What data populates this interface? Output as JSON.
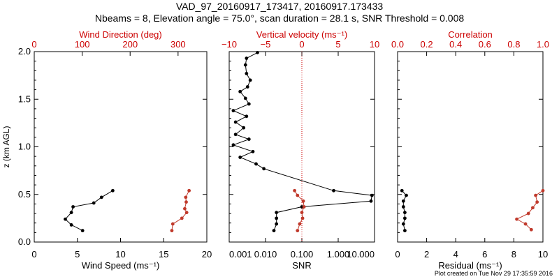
{
  "header": {
    "title_line1": "VAD_97_20160917_173417, 20160917.173433",
    "title_line2": "Nbeams = 8, Elevation angle = 75.0°, scan duration = 28.1 s, SNR Threshold = 0.008"
  },
  "footer": {
    "text": "Plot created on Tue Nov 29 17:35:59 2016"
  },
  "colors": {
    "axis": "#000000",
    "red": "#cc0000",
    "series_black": "#000000",
    "series_red": "#c0392b"
  },
  "chart_data": [
    {
      "type": "line",
      "panel": "wind",
      "xlabel": "Wind Speed (ms⁻¹)",
      "ylabel": "z (km AGL)",
      "xlim": [
        0,
        20
      ],
      "ylim": [
        0,
        2.0
      ],
      "x_ticks": [
        "0",
        "5",
        "10",
        "15",
        "20"
      ],
      "y_ticks": [
        "0.0",
        "0.5",
        "1.0",
        "1.5",
        "2.0"
      ],
      "top_axis": {
        "label": "Wind Direction (deg)",
        "lim": [
          0,
          360
        ],
        "ticks": [
          "0",
          "100",
          "200",
          "300"
        ],
        "tick_values": [
          0,
          100,
          200,
          300
        ],
        "color": "#cc0000"
      },
      "series": [
        {
          "axis": "bottom",
          "color": "#000000",
          "points": [
            [
              9.1,
              0.54
            ],
            [
              7.8,
              0.47
            ],
            [
              6.9,
              0.41
            ],
            [
              4.5,
              0.37
            ],
            [
              4.3,
              0.31
            ],
            [
              3.6,
              0.24
            ],
            [
              4.3,
              0.18
            ],
            [
              5.6,
              0.12
            ]
          ]
        },
        {
          "axis": "top",
          "color": "#c0392b",
          "points": [
            [
              323,
              0.54
            ],
            [
              316,
              0.47
            ],
            [
              317,
              0.42
            ],
            [
              314,
              0.35
            ],
            [
              318,
              0.31
            ],
            [
              308,
              0.25
            ],
            [
              289,
              0.19
            ],
            [
              287,
              0.12
            ]
          ]
        }
      ]
    },
    {
      "type": "line",
      "panel": "snr",
      "xlabel": "SNR",
      "xlim": [
        0.001,
        10
      ],
      "xscale": "log",
      "ylim": [
        0,
        2.0
      ],
      "x_ticks": [
        "0.001",
        "0.010",
        "0.100",
        "1.000",
        "10.000"
      ],
      "x_tick_values": [
        0.001,
        0.01,
        0.1,
        1,
        10
      ],
      "top_axis": {
        "label": "Vertical velocity (ms⁻¹)",
        "lim": [
          -10,
          10
        ],
        "ticks": [
          "−10",
          "−5",
          "0",
          "5",
          "10"
        ],
        "tick_values": [
          -10,
          -5,
          0,
          5,
          10
        ],
        "color": "#cc0000"
      },
      "threshold_line": {
        "axis": "top",
        "value": 0,
        "color": "#cc0000",
        "style": "dotted"
      },
      "series": [
        {
          "axis": "bottom",
          "color": "#000000",
          "points": [
            [
              0.006,
              1.99
            ],
            [
              0.003,
              1.93
            ],
            [
              0.0028,
              1.86
            ],
            [
              0.003,
              1.77
            ],
            [
              0.0038,
              1.7
            ],
            [
              0.0032,
              1.63
            ],
            [
              0.002,
              1.58
            ],
            [
              0.0028,
              1.51
            ],
            [
              0.0035,
              1.45
            ],
            [
              0.0013,
              1.38
            ],
            [
              0.003,
              1.32
            ],
            [
              0.0015,
              1.26
            ],
            [
              0.0025,
              1.2
            ],
            [
              0.0015,
              1.13
            ],
            [
              0.0035,
              1.08
            ],
            [
              0.0013,
              1.02
            ],
            [
              0.0045,
              0.95
            ],
            [
              0.002,
              0.89
            ],
            [
              0.0055,
              0.82
            ],
            [
              0.009,
              0.77
            ],
            [
              0.75,
              0.54
            ],
            [
              8.5,
              0.49
            ],
            [
              8.0,
              0.43
            ],
            [
              0.1,
              0.37
            ],
            [
              0.02,
              0.31
            ],
            [
              0.02,
              0.25
            ],
            [
              0.02,
              0.19
            ],
            [
              0.017,
              0.12
            ]
          ]
        },
        {
          "axis": "top",
          "color": "#c0392b",
          "points": [
            [
              -1.0,
              0.54
            ],
            [
              -0.6,
              0.49
            ],
            [
              0.2,
              0.43
            ],
            [
              0.3,
              0.37
            ],
            [
              0.0,
              0.31
            ],
            [
              0.1,
              0.25
            ],
            [
              -0.3,
              0.19
            ],
            [
              -0.6,
              0.12
            ]
          ]
        }
      ]
    },
    {
      "type": "line",
      "panel": "residual",
      "xlabel": "Residual (ms⁻¹)",
      "xlim": [
        0,
        10
      ],
      "ylim": [
        0,
        2.0
      ],
      "x_ticks": [
        "0",
        "2",
        "4",
        "6",
        "8",
        "10"
      ],
      "x_tick_values": [
        0,
        2,
        4,
        6,
        8,
        10
      ],
      "top_axis": {
        "label": "Correlation",
        "lim": [
          0,
          1
        ],
        "ticks": [
          "0.0",
          "0.2",
          "0.4",
          "0.6",
          "0.8",
          "1.0"
        ],
        "tick_values": [
          0,
          0.2,
          0.4,
          0.6,
          0.8,
          1.0
        ],
        "color": "#cc0000"
      },
      "series": [
        {
          "axis": "bottom",
          "color": "#000000",
          "points": [
            [
              0.3,
              0.54
            ],
            [
              0.6,
              0.49
            ],
            [
              0.4,
              0.43
            ],
            [
              0.4,
              0.37
            ],
            [
              0.5,
              0.31
            ],
            [
              0.5,
              0.25
            ],
            [
              0.4,
              0.19
            ],
            [
              0.5,
              0.12
            ]
          ]
        },
        {
          "axis": "top",
          "color": "#c0392b",
          "points": [
            [
              1.0,
              0.54
            ],
            [
              0.95,
              0.49
            ],
            [
              0.96,
              0.42
            ],
            [
              0.93,
              0.36
            ],
            [
              0.9,
              0.3
            ],
            [
              0.82,
              0.24
            ],
            [
              0.88,
              0.19
            ],
            [
              0.92,
              0.13
            ]
          ]
        }
      ]
    }
  ]
}
